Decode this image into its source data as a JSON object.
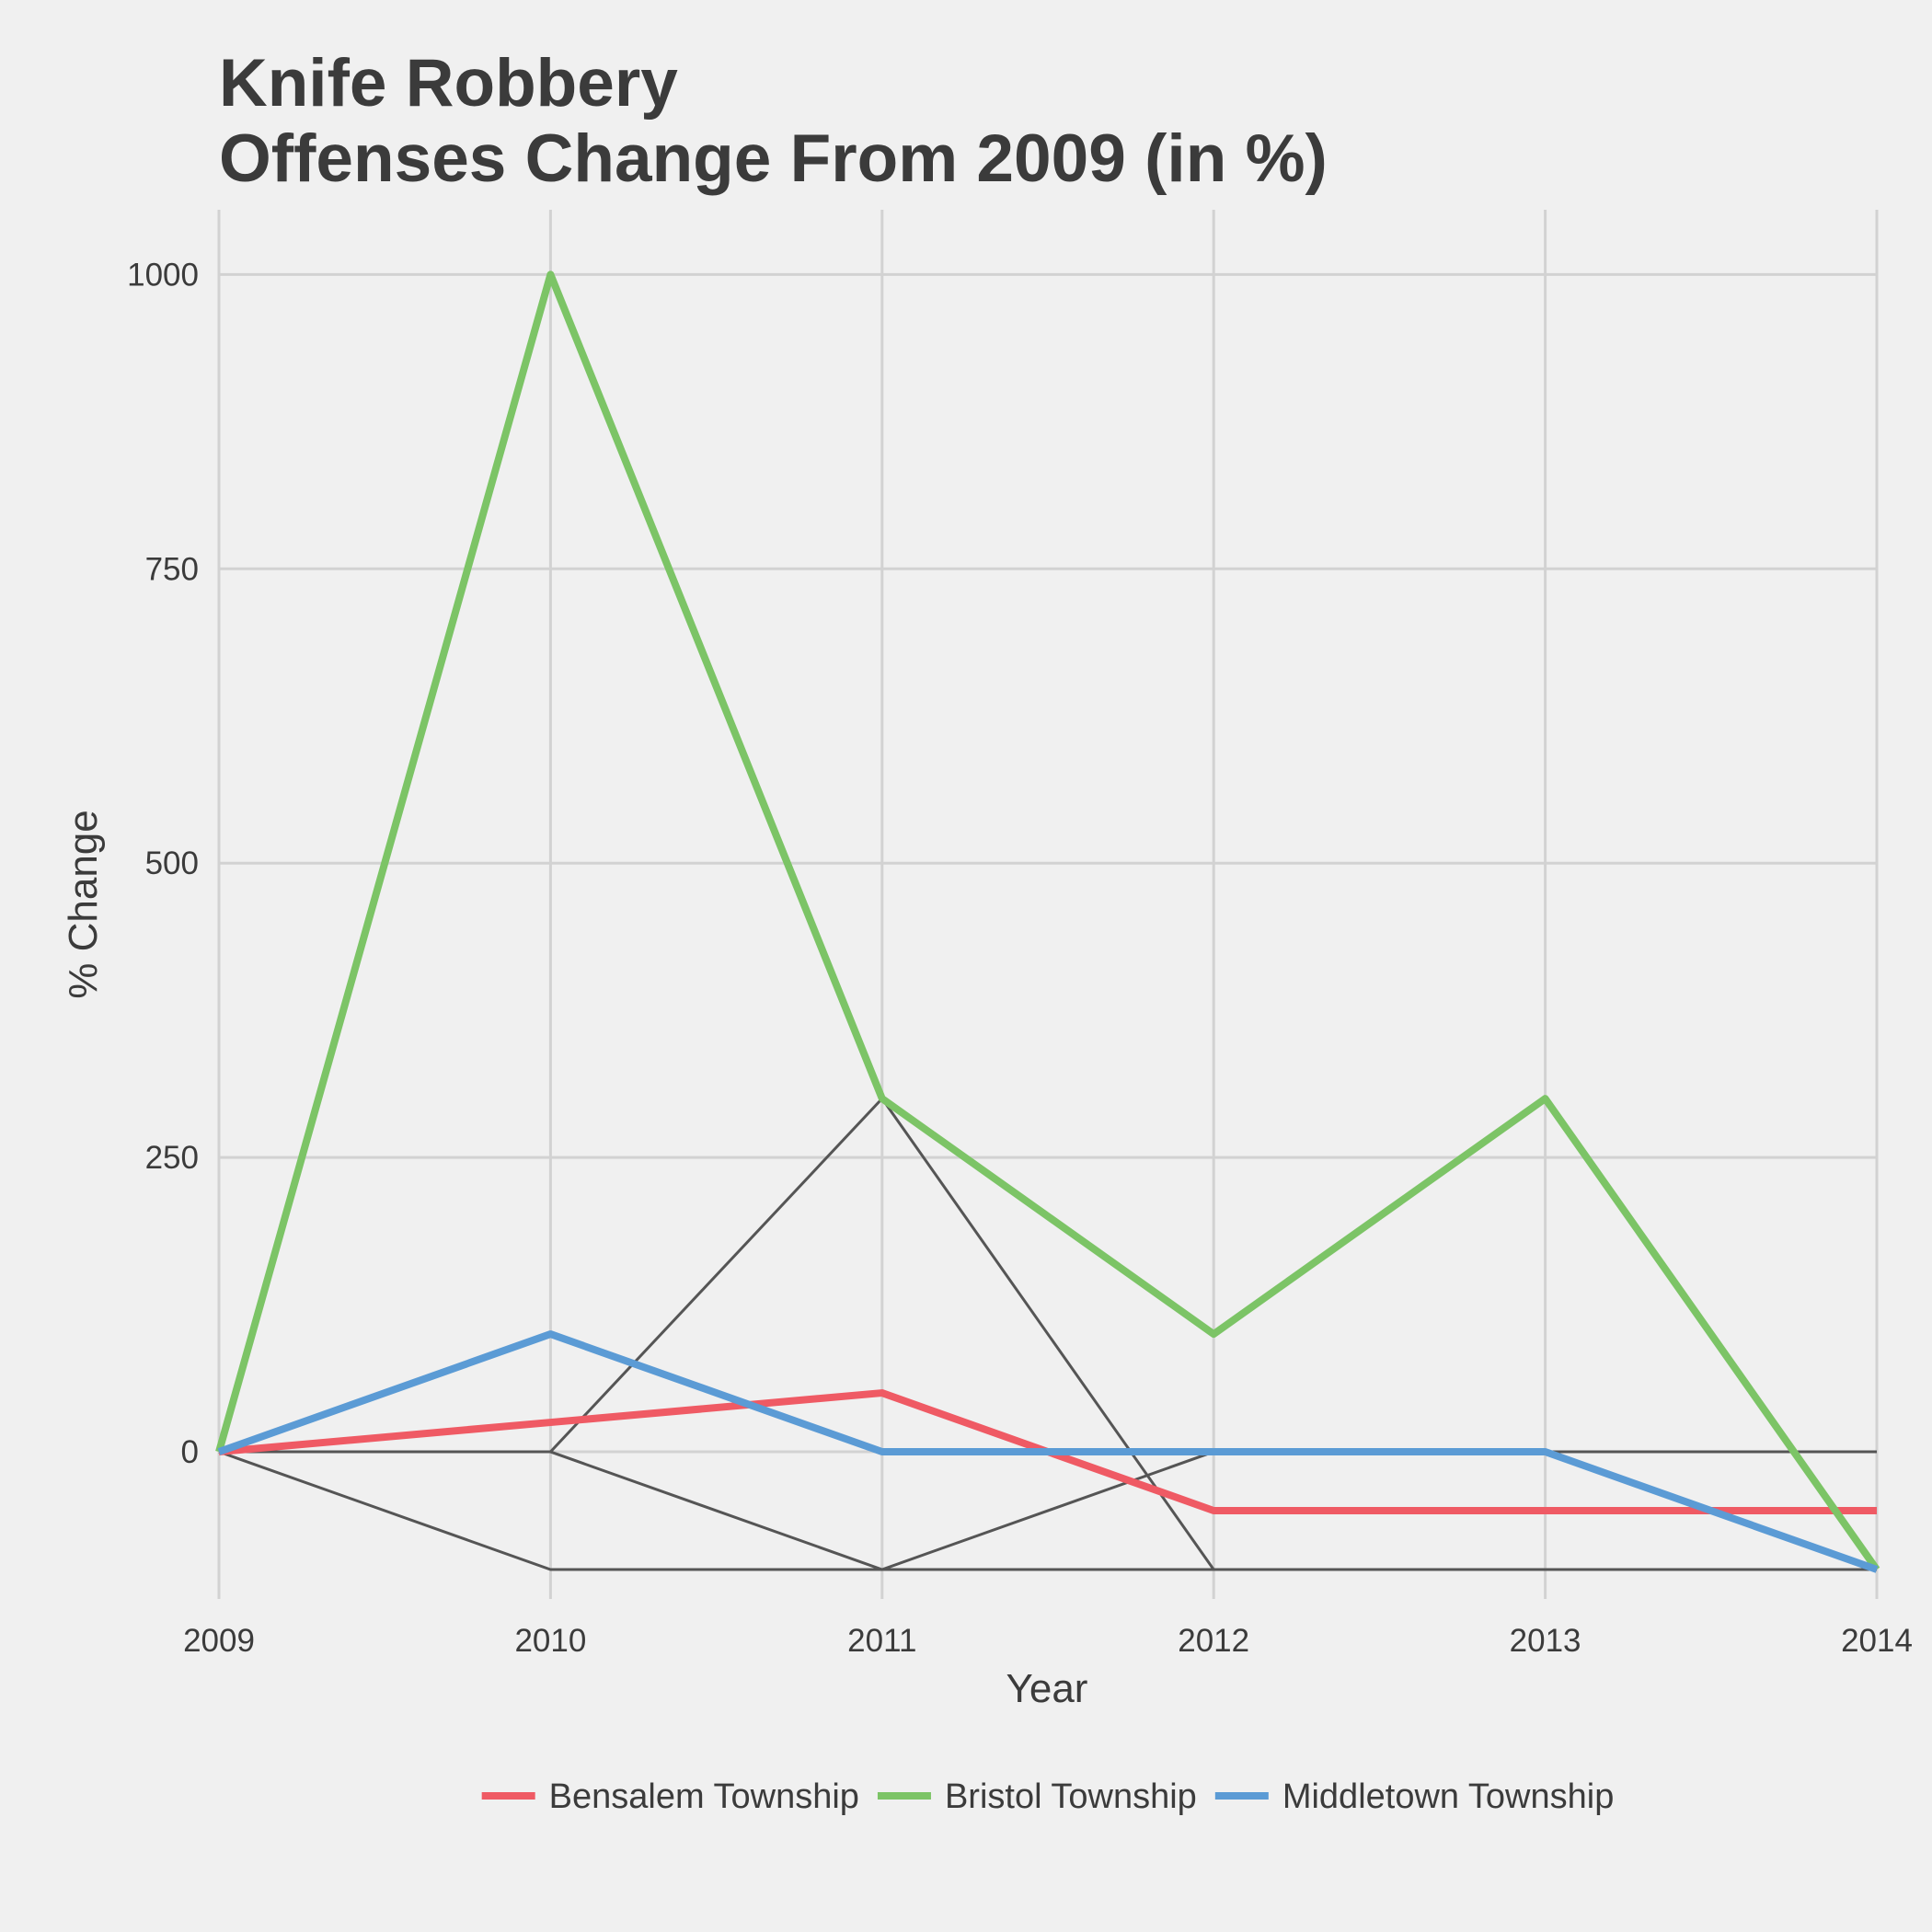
{
  "chart_data": {
    "type": "line",
    "title": [
      "Knife Robbery",
      "Offenses Change From 2009 (in %)"
    ],
    "xlabel": "Year",
    "ylabel": "% Change",
    "x": [
      2009,
      2010,
      2011,
      2012,
      2013,
      2014
    ],
    "x_tick_labels": [
      "2009",
      "2010",
      "2011",
      "2012",
      "2013",
      "2014"
    ],
    "y_ticks": [
      0,
      250,
      500,
      750,
      1000
    ],
    "y_tick_labels": [
      "0",
      "250",
      "500",
      "750",
      "1000"
    ],
    "ylim": [
      -125,
      1055
    ],
    "grid": true,
    "legend_position": "bottom",
    "series": [
      {
        "name": "Bensalem Township",
        "color": "#ef5a64",
        "values": [
          0,
          25,
          50,
          -50,
          -50,
          -50
        ]
      },
      {
        "name": "Bristol Township",
        "color": "#7cc466",
        "values": [
          0,
          1000,
          300,
          100,
          300,
          -100
        ]
      },
      {
        "name": "Middletown Township",
        "color": "#5b9bd5",
        "values": [
          0,
          100,
          0,
          0,
          0,
          -100
        ]
      }
    ],
    "background_series": {
      "color": "#555555",
      "lines": [
        [
          0,
          0,
          300,
          -100,
          -100,
          -100
        ],
        [
          0,
          0,
          -100,
          0,
          0,
          0
        ],
        [
          0,
          -100,
          -100,
          -100,
          -100,
          -100
        ]
      ]
    }
  }
}
